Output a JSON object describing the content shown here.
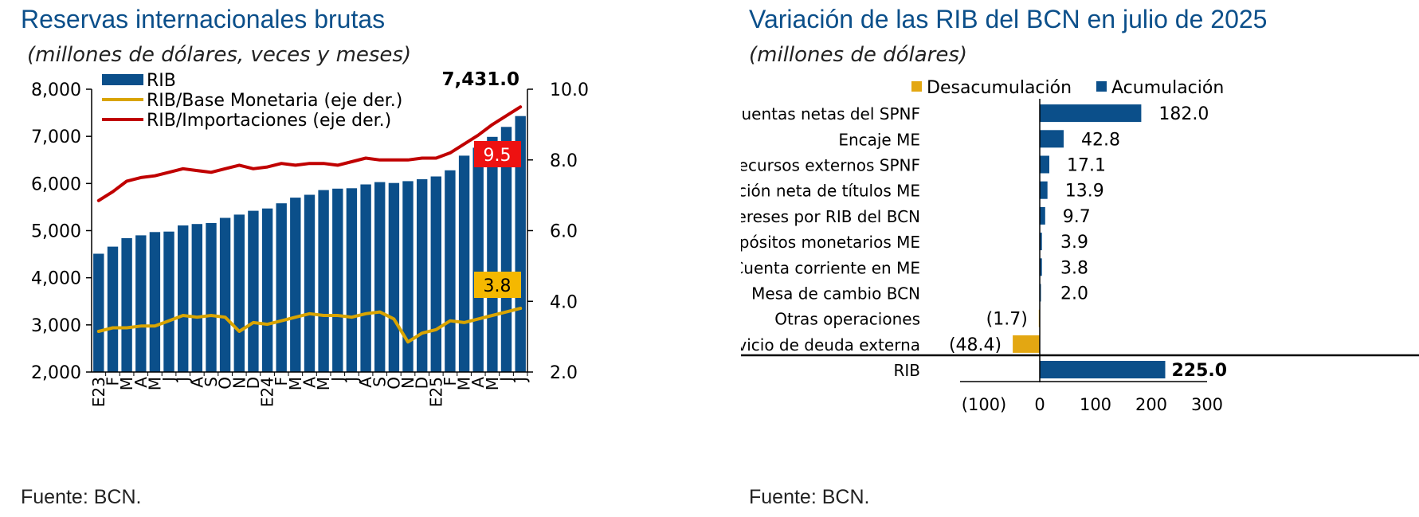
{
  "left": {
    "title": "Reservas internacionales brutas",
    "subtitle": "(millones de dólares, veces y meses)",
    "source": "Fuente: BCN.",
    "last_value_label": "7,431.0",
    "ratio_imports_label": "9.5",
    "ratio_base_label": "3.8",
    "legend": [
      {
        "name": "RIB",
        "color": "#0b4f8a",
        "kind": "bar"
      },
      {
        "name": "RIB/Base Monetaria (eje der.)",
        "color": "#d9a400",
        "kind": "line"
      },
      {
        "name": "RIB/Importaciones (eje der.)",
        "color": "#c00000",
        "kind": "line"
      }
    ]
  },
  "right": {
    "title": "Variación de las RIB del BCN en julio de 2025",
    "subtitle": "(millones de dólares)",
    "source": "Fuente: BCN.",
    "legend": [
      {
        "name": "Desacumulación",
        "color": "#e3a712"
      },
      {
        "name": "Acumulación",
        "color": "#0b4f8a"
      }
    ]
  },
  "chart_data": [
    {
      "type": "bar",
      "title": "Reservas internacionales brutas",
      "categories": [
        "E23",
        "F",
        "M",
        "A",
        "M",
        "J",
        "J",
        "A",
        "S",
        "O",
        "N",
        "D",
        "E24",
        "F",
        "M",
        "A",
        "M",
        "J",
        "J",
        "A",
        "S",
        "O",
        "N",
        "D",
        "E25",
        "F",
        "M",
        "A",
        "M",
        "J",
        "J"
      ],
      "ylim": [
        2000,
        8000
      ],
      "y_ticks": [
        "2,000",
        "3,000",
        "4,000",
        "5,000",
        "6,000",
        "7,000",
        "8,000"
      ],
      "y2lim": [
        2.0,
        10.0
      ],
      "y2_ticks": [
        "2.0",
        "4.0",
        "6.0",
        "8.0",
        "10.0"
      ],
      "series": [
        {
          "name": "RIB",
          "axis": "left",
          "color": "#0b4f8a",
          "values": [
            4510,
            4660,
            4840,
            4900,
            4970,
            4980,
            5110,
            5140,
            5160,
            5270,
            5340,
            5420,
            5470,
            5580,
            5700,
            5760,
            5860,
            5890,
            5900,
            5980,
            6030,
            6010,
            6050,
            6090,
            6150,
            6280,
            6590,
            6760,
            6990,
            7200,
            7431
          ]
        },
        {
          "name": "RIB/Base Monetaria (eje der.)",
          "axis": "right",
          "color": "#d9a400",
          "values": [
            3.15,
            3.25,
            3.25,
            3.3,
            3.3,
            3.45,
            3.6,
            3.55,
            3.6,
            3.55,
            3.15,
            3.4,
            3.35,
            3.45,
            3.55,
            3.65,
            3.6,
            3.6,
            3.55,
            3.65,
            3.7,
            3.5,
            2.85,
            3.1,
            3.2,
            3.45,
            3.4,
            3.5,
            3.6,
            3.7,
            3.8
          ]
        },
        {
          "name": "RIB/Importaciones (eje der.)",
          "axis": "right",
          "color": "#c00000",
          "values": [
            6.85,
            7.1,
            7.4,
            7.5,
            7.55,
            7.65,
            7.75,
            7.7,
            7.65,
            7.75,
            7.85,
            7.75,
            7.8,
            7.9,
            7.85,
            7.9,
            7.9,
            7.85,
            7.95,
            8.05,
            8.0,
            8.0,
            8.0,
            8.05,
            8.05,
            8.2,
            8.45,
            8.7,
            9.0,
            9.25,
            9.5
          ]
        }
      ],
      "grid": false,
      "legend_position": "top-left"
    },
    {
      "type": "bar",
      "orientation": "horizontal",
      "title": "Variación de las RIB del BCN en julio de 2025",
      "categories": [
        "Cuentas netas del SPNF",
        "Encaje ME",
        "Recursos externos SPNF",
        "Colocación neta de títulos ME",
        "Intereses por RIB del BCN",
        "Depósitos monetarios ME",
        "Cuenta corriente en ME",
        "Mesa de cambio BCN",
        "Otras operaciones",
        "Servicio de deuda externa",
        "RIB"
      ],
      "values": [
        182.0,
        42.8,
        17.1,
        13.9,
        9.7,
        3.9,
        3.8,
        2.0,
        -1.7,
        -48.4,
        225.0
      ],
      "value_labels": [
        "182.0",
        "42.8",
        "17.1",
        "13.9",
        "9.7",
        "3.9",
        "3.8",
        "2.0",
        "(1.7)",
        "(48.4)",
        "225.0"
      ],
      "xlim": [
        -100,
        300
      ],
      "x_ticks": [
        "(100)",
        "0",
        "100",
        "200",
        "300"
      ],
      "x_tick_values": [
        -100,
        0,
        100,
        200,
        300
      ],
      "grid": false,
      "legend_position": "top-right"
    }
  ]
}
